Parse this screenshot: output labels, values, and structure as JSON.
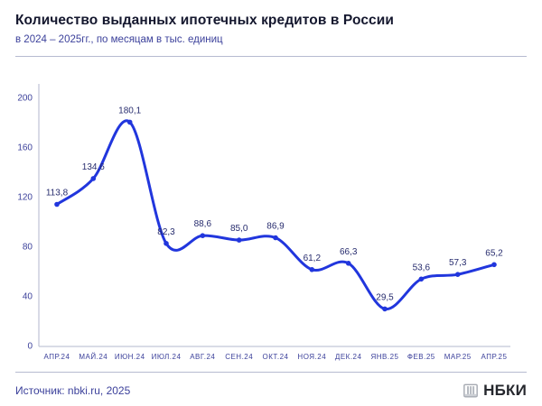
{
  "header": {
    "title": "Количество выданных ипотечных кредитов в России",
    "subtitle": "в 2024 – 2025гг., по месяцам в тыс. единиц"
  },
  "chart_data": {
    "type": "line",
    "title": "Количество выданных ипотечных кредитов в России",
    "subtitle": "в 2024 – 2025гг., по месяцам в тыс. единиц",
    "categories": [
      "АПР.24",
      "МАЙ.24",
      "ИЮН.24",
      "ИЮЛ.24",
      "АВГ.24",
      "СЕН.24",
      "ОКТ.24",
      "НОЯ.24",
      "ДЕК.24",
      "ЯНВ.25",
      "ФЕВ.25",
      "МАР.25",
      "АПР.25"
    ],
    "values": [
      113.8,
      134.6,
      180.1,
      82.3,
      88.6,
      85.0,
      86.9,
      61.2,
      66.3,
      29.5,
      53.6,
      57.3,
      65.2
    ],
    "point_labels": [
      "113,8",
      "134,6",
      "180,1",
      "82,3",
      "88,6",
      "85,0",
      "86,9",
      "61,2",
      "66,3",
      "29,5",
      "53,6",
      "57,3",
      "65,2"
    ],
    "y_ticks": [
      0,
      40,
      80,
      120,
      160,
      200
    ],
    "ylim": [
      0,
      200
    ],
    "xlabel": "",
    "ylabel": "",
    "grid": false,
    "legend": "none",
    "smooth": true,
    "line_color": "#2136dd",
    "marker_color": "#2136dd",
    "axis_color": "#c2c6d8"
  },
  "footer": {
    "source": "Источник: nbki.ru, 2025",
    "logo_text": "НБКИ"
  },
  "colors": {
    "title_text": "#14172e",
    "secondary_text": "#3c419b",
    "accent_blue": "#2136dd",
    "divider": "#b6bbd0"
  }
}
